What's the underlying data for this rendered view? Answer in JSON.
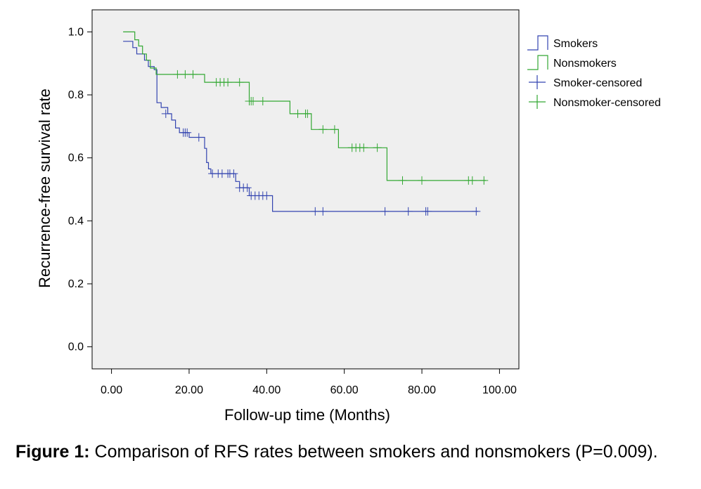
{
  "chart_data": {
    "type": "line",
    "subtype": "kaplan-meier",
    "xlabel": "Follow-up time (Months)",
    "ylabel": "Recurrence-free survival rate",
    "xlim": [
      -5,
      105
    ],
    "ylim": [
      -0.07,
      1.07
    ],
    "xticks": [
      "0.00",
      "20.00",
      "40.00",
      "60.00",
      "80.00",
      "100.00"
    ],
    "xtick_values": [
      0,
      20,
      40,
      60,
      80,
      100
    ],
    "yticks": [
      "0.0",
      "0.2",
      "0.4",
      "0.6",
      "0.8",
      "1.0"
    ],
    "ytick_values": [
      0,
      0.2,
      0.4,
      0.6,
      0.8,
      1.0
    ],
    "grid": false,
    "plot_background": "#efefef",
    "legend_position": "right",
    "legend": [
      {
        "label": "Smokers",
        "kind": "step",
        "color": "#3344b0"
      },
      {
        "label": "Nonsmokers",
        "kind": "step",
        "color": "#33a833"
      },
      {
        "label": "Smoker-censored",
        "kind": "cross",
        "color": "#3344b0"
      },
      {
        "label": "Nonsmoker-censored",
        "kind": "cross",
        "color": "#33a833"
      }
    ],
    "series": [
      {
        "name": "Smokers",
        "color": "#3344b0",
        "step_points": [
          [
            3,
            0.97
          ],
          [
            5.5,
            0.95
          ],
          [
            6.5,
            0.93
          ],
          [
            8.5,
            0.91
          ],
          [
            9.5,
            0.89
          ],
          [
            11,
            0.88
          ],
          [
            11.7,
            0.775
          ],
          [
            12.8,
            0.76
          ],
          [
            14.5,
            0.74
          ],
          [
            15.5,
            0.72
          ],
          [
            16.5,
            0.695
          ],
          [
            17.5,
            0.68
          ],
          [
            20,
            0.665
          ],
          [
            24,
            0.63
          ],
          [
            24.5,
            0.585
          ],
          [
            25,
            0.565
          ],
          [
            25.6,
            0.55
          ],
          [
            32,
            0.525
          ],
          [
            33,
            0.505
          ],
          [
            35.5,
            0.48
          ],
          [
            41.5,
            0.43
          ],
          [
            94.5,
            0.43
          ]
        ],
        "censored": [
          [
            14,
            0.74
          ],
          [
            18.5,
            0.68
          ],
          [
            19,
            0.68
          ],
          [
            19.5,
            0.68
          ],
          [
            22.5,
            0.665
          ],
          [
            26,
            0.55
          ],
          [
            27.5,
            0.55
          ],
          [
            28.5,
            0.55
          ],
          [
            30,
            0.55
          ],
          [
            30.5,
            0.55
          ],
          [
            31.5,
            0.55
          ],
          [
            33,
            0.505
          ],
          [
            34,
            0.505
          ],
          [
            35,
            0.505
          ],
          [
            36,
            0.48
          ],
          [
            37,
            0.48
          ],
          [
            38,
            0.48
          ],
          [
            39,
            0.48
          ],
          [
            40,
            0.48
          ],
          [
            52.5,
            0.43
          ],
          [
            54.5,
            0.43
          ],
          [
            70.5,
            0.43
          ],
          [
            76.5,
            0.43
          ],
          [
            81,
            0.43
          ],
          [
            81.5,
            0.43
          ],
          [
            94,
            0.43
          ]
        ]
      },
      {
        "name": "Nonsmokers",
        "color": "#33a833",
        "step_points": [
          [
            3,
            1.0
          ],
          [
            6,
            0.975
          ],
          [
            7,
            0.955
          ],
          [
            8,
            0.93
          ],
          [
            9,
            0.91
          ],
          [
            10,
            0.885
          ],
          [
            11.5,
            0.865
          ],
          [
            24,
            0.84
          ],
          [
            35.5,
            0.78
          ],
          [
            46,
            0.74
          ],
          [
            51.5,
            0.69
          ],
          [
            58.5,
            0.632
          ],
          [
            71,
            0.528
          ],
          [
            96.5,
            0.528
          ]
        ],
        "censored": [
          [
            17,
            0.865
          ],
          [
            19,
            0.865
          ],
          [
            21,
            0.865
          ],
          [
            27,
            0.84
          ],
          [
            28,
            0.84
          ],
          [
            29,
            0.84
          ],
          [
            30,
            0.84
          ],
          [
            33,
            0.84
          ],
          [
            35.5,
            0.78
          ],
          [
            36,
            0.78
          ],
          [
            36.5,
            0.78
          ],
          [
            39,
            0.78
          ],
          [
            48,
            0.74
          ],
          [
            50,
            0.74
          ],
          [
            50.5,
            0.74
          ],
          [
            54.5,
            0.69
          ],
          [
            57.5,
            0.69
          ],
          [
            62,
            0.632
          ],
          [
            63,
            0.632
          ],
          [
            64,
            0.632
          ],
          [
            65,
            0.632
          ],
          [
            68.5,
            0.632
          ],
          [
            75,
            0.528
          ],
          [
            80,
            0.528
          ],
          [
            92,
            0.528
          ],
          [
            93,
            0.528
          ],
          [
            96,
            0.528
          ]
        ]
      }
    ]
  },
  "caption": {
    "label": "Figure 1:",
    "text": " Comparison of RFS rates between smokers and nonsmokers (P=0.009)."
  }
}
